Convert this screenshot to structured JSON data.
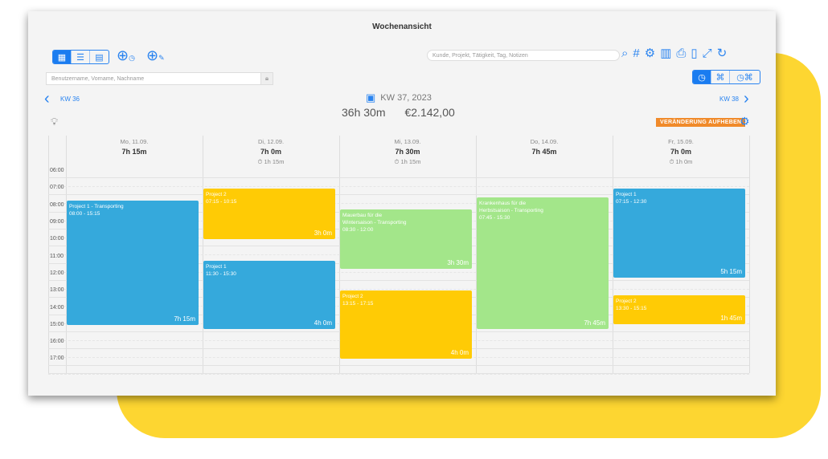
{
  "window_title": "Wochenansicht",
  "toolbar": {
    "view_modes": [
      {
        "icon": "calendar-icon",
        "active": true
      },
      {
        "icon": "list-icon",
        "active": false
      },
      {
        "icon": "table-icon",
        "active": false
      }
    ],
    "add_time_icon": "add-time-icon",
    "add_expense_icon": "add-tag-icon",
    "search_placeholder": "Kunde, Projekt, Tätigkeit, Tag, Notizen",
    "user_placeholder": "Benutzername, Vorname, Nachname",
    "right_icons": [
      "search-icon",
      "hash-icon",
      "gear-icon",
      "chart-icon",
      "print-icon",
      "export-icon",
      "fullscreen-icon",
      "refresh-icon"
    ],
    "display_modes": [
      {
        "icon": "clock-icon",
        "active": true
      },
      {
        "icon": "tag-icon",
        "active": false
      },
      {
        "icon": "clock-tag-icon",
        "active": false
      }
    ]
  },
  "nav": {
    "prev": "KW 36",
    "next": "KW 38",
    "current": "KW 37, 2023",
    "total_time": "36h 30m",
    "total_amount": "€2.142,00",
    "reset_label": "VERÄNDERUNG AUFHEBEN"
  },
  "colors": {
    "accent": "#2a84f0",
    "blue_event": "#35a9dc",
    "yellow_event": "#ffcb05",
    "green_event": "#a3e68a",
    "badge": "#f08a2a"
  },
  "hours": [
    "06:00",
    "07:00",
    "08:00",
    "09:00",
    "10:00",
    "11:00",
    "12:00",
    "13:00",
    "14:00",
    "15:00",
    "16:00",
    "17:00"
  ],
  "days": [
    {
      "label": "Mo, 11.09.",
      "total": "7h 15m",
      "break": ""
    },
    {
      "label": "Di, 12.09.",
      "total": "7h 0m",
      "break": "1h 15m"
    },
    {
      "label": "Mi, 13.09.",
      "total": "7h 30m",
      "break": "1h 15m"
    },
    {
      "label": "Do, 14.09.",
      "total": "7h 45m",
      "break": ""
    },
    {
      "label": "Fr, 15.09.",
      "total": "7h 0m",
      "break": "1h 0m"
    }
  ],
  "events": [
    {
      "day": 0,
      "title": "Project 1 - Transporting",
      "time": "08:00 - 15:15",
      "duration": "7h 15m",
      "color": "blue"
    },
    {
      "day": 1,
      "title": "Project 2",
      "time": "07:15 - 10:15",
      "duration": "3h 0m",
      "color": "yellow"
    },
    {
      "day": 1,
      "title": "Project 1",
      "time": "11:30 - 15:30",
      "duration": "4h 0m",
      "color": "blue"
    },
    {
      "day": 2,
      "title": "Mauerbau für die Wintersaison - Transporting",
      "time": "08:30 - 12:00",
      "duration": "3h 30m",
      "color": "green"
    },
    {
      "day": 2,
      "title": "Project 2",
      "time": "13:15 - 17:15",
      "duration": "4h 0m",
      "color": "yellow"
    },
    {
      "day": 3,
      "title": "Krankenhaus für die Herbstsaison - Transporting",
      "time": "07:45 - 15:30",
      "duration": "7h 45m",
      "color": "green"
    },
    {
      "day": 4,
      "title": "Project 1",
      "time": "07:15 - 12:30",
      "duration": "5h 15m",
      "color": "blue"
    },
    {
      "day": 4,
      "title": "Project 2",
      "time": "13:30 - 15:15",
      "duration": "1h 45m",
      "color": "yellow"
    }
  ]
}
